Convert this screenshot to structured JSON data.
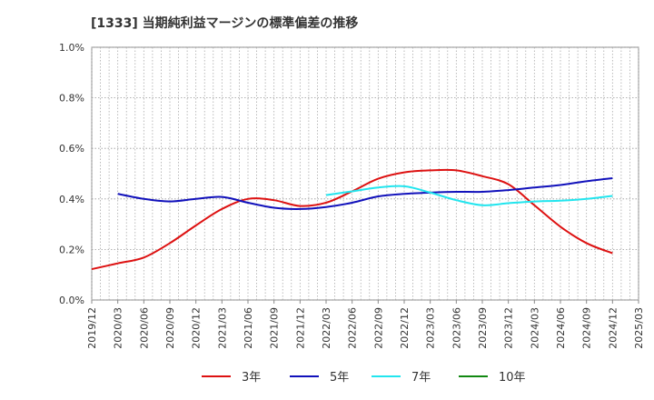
{
  "chart_data": {
    "type": "line",
    "title": "[1333]  当期純利益マージンの標準偏差の推移",
    "xlabel": "",
    "ylabel": "",
    "ylim": [
      0,
      1.0
    ],
    "y_ticks": [
      "0.0%",
      "0.2%",
      "0.4%",
      "0.6%",
      "0.8%",
      "1.0%"
    ],
    "x_ticks": [
      "2019/12",
      "2020/03",
      "2020/06",
      "2020/09",
      "2020/12",
      "2021/03",
      "2021/06",
      "2021/09",
      "2021/12",
      "2022/03",
      "2022/06",
      "2022/09",
      "2022/12",
      "2023/03",
      "2023/06",
      "2023/09",
      "2023/12",
      "2024/03",
      "2024/06",
      "2024/09",
      "2024/12",
      "2025/03"
    ],
    "grid": true,
    "legend_position": "bottom",
    "series": [
      {
        "name": "3年",
        "color": "#dd1111",
        "points": [
          [
            "2019/12",
            0.122
          ],
          [
            "2020/03",
            0.145
          ],
          [
            "2020/06",
            0.168
          ],
          [
            "2020/09",
            0.225
          ],
          [
            "2020/12",
            0.295
          ],
          [
            "2021/03",
            0.36
          ],
          [
            "2021/06",
            0.4
          ],
          [
            "2021/09",
            0.395
          ],
          [
            "2021/12",
            0.372
          ],
          [
            "2022/03",
            0.385
          ],
          [
            "2022/06",
            0.43
          ],
          [
            "2022/09",
            0.48
          ],
          [
            "2022/12",
            0.505
          ],
          [
            "2023/03",
            0.513
          ],
          [
            "2023/06",
            0.513
          ],
          [
            "2023/09",
            0.49
          ],
          [
            "2023/12",
            0.458
          ],
          [
            "2024/03",
            0.375
          ],
          [
            "2024/06",
            0.29
          ],
          [
            "2024/09",
            0.225
          ],
          [
            "2024/12",
            0.185
          ]
        ]
      },
      {
        "name": "5年",
        "color": "#1111bb",
        "points": [
          [
            "2020/03",
            0.42
          ],
          [
            "2020/06",
            0.4
          ],
          [
            "2020/09",
            0.39
          ],
          [
            "2020/12",
            0.4
          ],
          [
            "2021/03",
            0.408
          ],
          [
            "2021/06",
            0.385
          ],
          [
            "2021/09",
            0.365
          ],
          [
            "2021/12",
            0.36
          ],
          [
            "2022/03",
            0.368
          ],
          [
            "2022/06",
            0.385
          ],
          [
            "2022/09",
            0.41
          ],
          [
            "2022/12",
            0.42
          ],
          [
            "2023/03",
            0.425
          ],
          [
            "2023/06",
            0.428
          ],
          [
            "2023/09",
            0.428
          ],
          [
            "2023/12",
            0.435
          ],
          [
            "2024/03",
            0.445
          ],
          [
            "2024/06",
            0.455
          ],
          [
            "2024/09",
            0.47
          ],
          [
            "2024/12",
            0.482
          ]
        ]
      },
      {
        "name": "7年",
        "color": "#22e5ee",
        "points": [
          [
            "2022/03",
            0.415
          ],
          [
            "2022/06",
            0.43
          ],
          [
            "2022/09",
            0.445
          ],
          [
            "2022/12",
            0.45
          ],
          [
            "2023/03",
            0.425
          ],
          [
            "2023/06",
            0.395
          ],
          [
            "2023/09",
            0.375
          ],
          [
            "2023/12",
            0.383
          ],
          [
            "2024/03",
            0.39
          ],
          [
            "2024/06",
            0.393
          ],
          [
            "2024/09",
            0.4
          ],
          [
            "2024/12",
            0.412
          ]
        ]
      },
      {
        "name": "10年",
        "color": "#118811",
        "points": []
      }
    ]
  }
}
